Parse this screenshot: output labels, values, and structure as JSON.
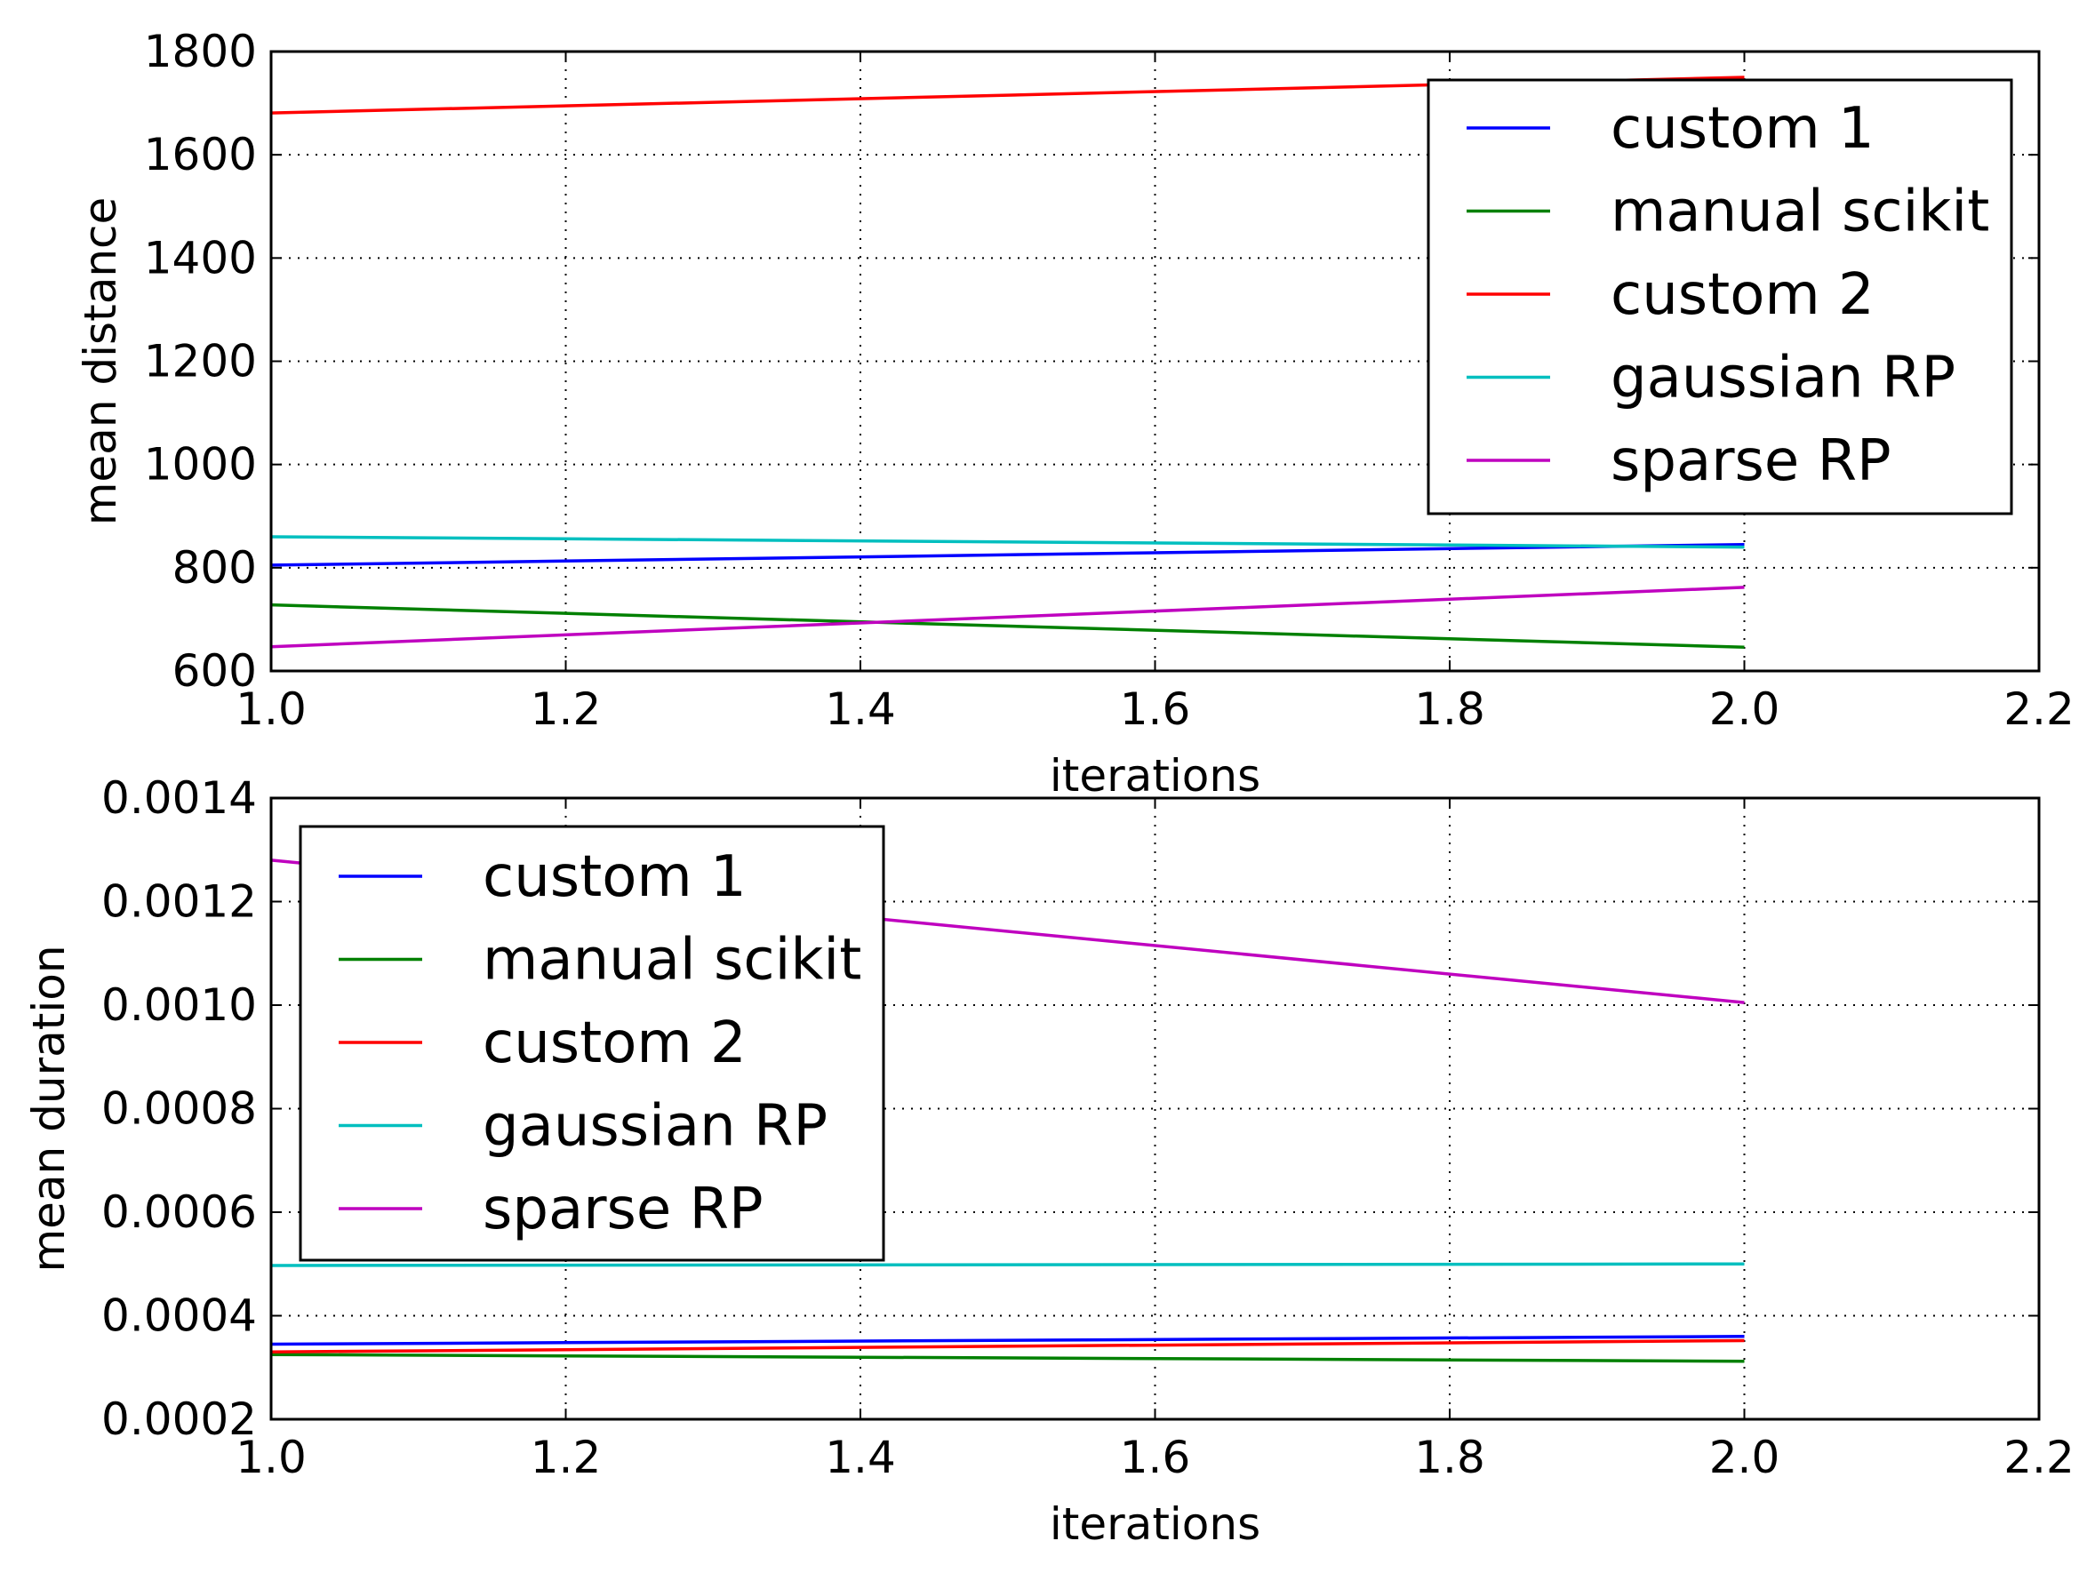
{
  "chart_data": [
    {
      "type": "line",
      "xlabel": "iterations",
      "ylabel": "mean distance",
      "xlim": [
        1.0,
        2.2
      ],
      "ylim": [
        600,
        1800
      ],
      "xticks": [
        "1.0",
        "1.2",
        "1.4",
        "1.6",
        "1.8",
        "2.0",
        "2.2"
      ],
      "yticks": [
        "600",
        "800",
        "1000",
        "1200",
        "1400",
        "1600",
        "1800"
      ],
      "grid": true,
      "legend_position": "top-right",
      "x": [
        1,
        2
      ],
      "series": [
        {
          "name": "custom 1",
          "color": "#0000ff",
          "values": [
            805,
            845
          ]
        },
        {
          "name": "manual scikit",
          "color": "#008000",
          "values": [
            728,
            646
          ]
        },
        {
          "name": "custom 2",
          "color": "#ff0000",
          "values": [
            1681,
            1750
          ]
        },
        {
          "name": "gaussian RP",
          "color": "#00bfbf",
          "values": [
            860,
            840
          ]
        },
        {
          "name": "sparse RP",
          "color": "#bf00bf",
          "values": [
            647,
            762
          ]
        }
      ]
    },
    {
      "type": "line",
      "xlabel": "iterations",
      "ylabel": "mean duration",
      "xlim": [
        1.0,
        2.2
      ],
      "ylim": [
        0.0002,
        0.0014
      ],
      "xticks": [
        "1.0",
        "1.2",
        "1.4",
        "1.6",
        "1.8",
        "2.0",
        "2.2"
      ],
      "yticks": [
        "0.0002",
        "0.0004",
        "0.0006",
        "0.0008",
        "0.0010",
        "0.0012",
        "0.0014"
      ],
      "grid": true,
      "legend_position": "top-left",
      "x": [
        1,
        2
      ],
      "series": [
        {
          "name": "custom 1",
          "color": "#0000ff",
          "values": [
            0.000345,
            0.00036
          ]
        },
        {
          "name": "manual scikit",
          "color": "#008000",
          "values": [
            0.000325,
            0.000312
          ]
        },
        {
          "name": "custom 2",
          "color": "#ff0000",
          "values": [
            0.00033,
            0.000352
          ]
        },
        {
          "name": "gaussian RP",
          "color": "#00bfbf",
          "values": [
            0.000497,
            0.0005
          ]
        },
        {
          "name": "sparse RP",
          "color": "#bf00bf",
          "values": [
            0.00128,
            0.001005
          ]
        }
      ]
    }
  ]
}
